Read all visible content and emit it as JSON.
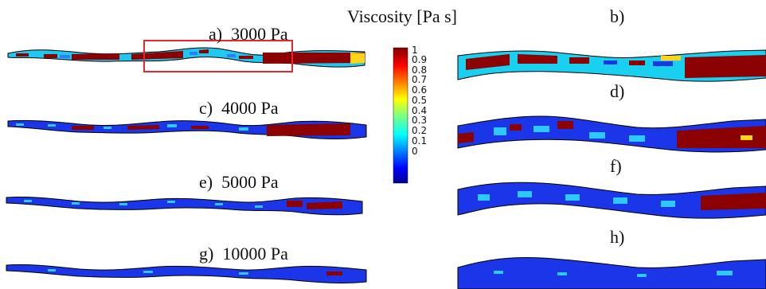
{
  "figure": {
    "colorbar_title": "Viscosity [Pa s]",
    "colorbar_ticks": [
      "1",
      "0.9",
      "0.8",
      "0.7",
      "0.6",
      "0.5",
      "0.4",
      "0.3",
      "0.2",
      "0.1",
      "0"
    ],
    "colorbar_range": [
      0,
      1
    ],
    "colormap": "jet",
    "highlight_color": "#e8262b",
    "panels_left": [
      {
        "label": "a)",
        "pressure": "3000 Pa"
      },
      {
        "label": "c)",
        "pressure": "4000 Pa"
      },
      {
        "label": "e)",
        "pressure": "5000 Pa"
      },
      {
        "label": "g)",
        "pressure": "10000 Pa"
      }
    ],
    "panels_right": [
      {
        "label": "b)"
      },
      {
        "label": "d)"
      },
      {
        "label": "f)"
      },
      {
        "label": "h)"
      }
    ]
  }
}
